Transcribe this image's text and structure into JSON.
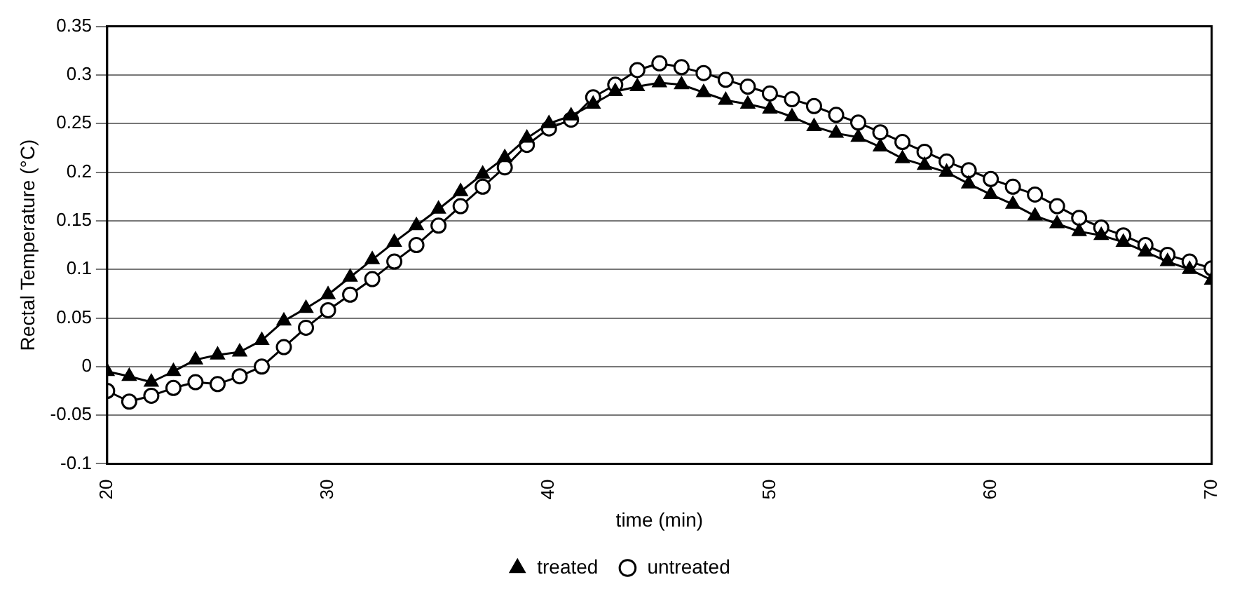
{
  "chart_data": {
    "type": "line",
    "xlabel": "time (min)",
    "ylabel": "Rectal Temperature (°C)",
    "x": [
      20,
      21,
      22,
      23,
      24,
      25,
      26,
      27,
      28,
      29,
      30,
      31,
      32,
      33,
      34,
      35,
      36,
      37,
      38,
      39,
      40,
      41,
      42,
      43,
      44,
      45,
      46,
      47,
      48,
      49,
      50,
      51,
      52,
      53,
      54,
      55,
      56,
      57,
      58,
      59,
      60,
      61,
      62,
      63,
      64,
      65,
      66,
      67,
      68,
      69,
      70
    ],
    "series": [
      {
        "name": "treated",
        "color": "#000000",
        "marker": "triangle",
        "values": [
          -0.005,
          -0.01,
          -0.016,
          -0.005,
          0.007,
          0.012,
          0.015,
          0.027,
          0.047,
          0.06,
          0.074,
          0.092,
          0.11,
          0.128,
          0.145,
          0.162,
          0.18,
          0.198,
          0.215,
          0.235,
          0.25,
          0.258,
          0.27,
          0.283,
          0.288,
          0.292,
          0.29,
          0.282,
          0.274,
          0.27,
          0.265,
          0.257,
          0.247,
          0.24,
          0.236,
          0.226,
          0.214,
          0.207,
          0.2,
          0.188,
          0.177,
          0.167,
          0.155,
          0.147,
          0.139,
          0.135,
          0.128,
          0.118,
          0.108,
          0.1,
          0.089
        ]
      },
      {
        "name": "untreated",
        "color": "#000000",
        "marker": "circle",
        "values": [
          -0.025,
          -0.036,
          -0.03,
          -0.022,
          -0.016,
          -0.018,
          -0.01,
          0.0,
          0.02,
          0.04,
          0.058,
          0.074,
          0.09,
          0.108,
          0.125,
          0.145,
          0.165,
          0.185,
          0.205,
          0.228,
          0.245,
          0.254,
          0.277,
          0.29,
          0.305,
          0.312,
          0.308,
          0.302,
          0.295,
          0.288,
          0.281,
          0.275,
          0.268,
          0.259,
          0.251,
          0.241,
          0.231,
          0.221,
          0.211,
          0.202,
          0.193,
          0.185,
          0.177,
          0.165,
          0.153,
          0.143,
          0.135,
          0.125,
          0.115,
          0.108,
          0.101
        ]
      }
    ],
    "xlim": [
      20,
      70
    ],
    "xticks": [
      20,
      30,
      40,
      50,
      60,
      70
    ],
    "ylim": [
      -0.1,
      0.35
    ],
    "yticks": [
      -0.1,
      -0.05,
      0,
      0.05,
      0.1,
      0.15,
      0.2,
      0.25,
      0.3,
      0.35
    ],
    "grid": "y",
    "legend": "bottom",
    "line_style": "solid"
  }
}
